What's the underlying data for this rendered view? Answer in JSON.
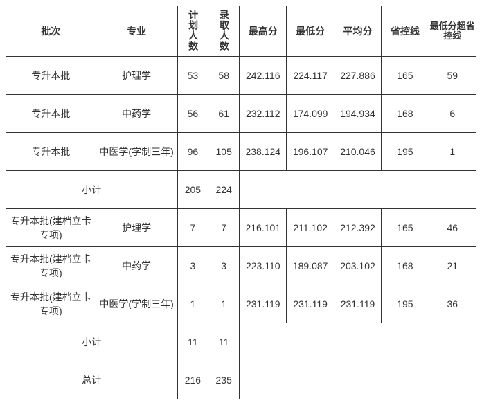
{
  "columns": {
    "batch": "批次",
    "major": "专业",
    "plan": "计划人数",
    "admit": "录取人数",
    "max": "最高分",
    "min": "最低分",
    "avg": "平均分",
    "prov": "省控线",
    "diff": "最低分超省控线"
  },
  "rows": [
    {
      "batch": "专升本批",
      "major": "护理学",
      "plan": "53",
      "admit": "58",
      "max": "242.116",
      "min": "224.117",
      "avg": "227.886",
      "prov": "165",
      "diff": "59"
    },
    {
      "batch": "专升本批",
      "major": "中药学",
      "plan": "56",
      "admit": "61",
      "max": "232.112",
      "min": "174.099",
      "avg": "194.934",
      "prov": "168",
      "diff": "6"
    },
    {
      "batch": "专升本批",
      "major": "中医学(学制三年)",
      "plan": "96",
      "admit": "105",
      "max": "238.124",
      "min": "196.107",
      "avg": "210.046",
      "prov": "195",
      "diff": "1"
    }
  ],
  "subtotal1": {
    "label": "小计",
    "plan": "205",
    "admit": "224"
  },
  "rows2": [
    {
      "batch": "专升本批(建档立卡专项)",
      "major": "护理学",
      "plan": "7",
      "admit": "7",
      "max": "216.101",
      "min": "211.102",
      "avg": "212.392",
      "prov": "165",
      "diff": "46"
    },
    {
      "batch": "专升本批(建档立卡专项)",
      "major": "中药学",
      "plan": "3",
      "admit": "3",
      "max": "223.110",
      "min": "189.087",
      "avg": "203.102",
      "prov": "168",
      "diff": "21"
    },
    {
      "batch": "专升本批(建档立卡专项)",
      "major": "中医学(学制三年)",
      "plan": "1",
      "admit": "1",
      "max": "231.119",
      "min": "231.119",
      "avg": "231.119",
      "prov": "195",
      "diff": "36"
    }
  ],
  "subtotal2": {
    "label": "小计",
    "plan": "11",
    "admit": "11"
  },
  "total": {
    "label": "总计",
    "plan": "216",
    "admit": "235"
  }
}
